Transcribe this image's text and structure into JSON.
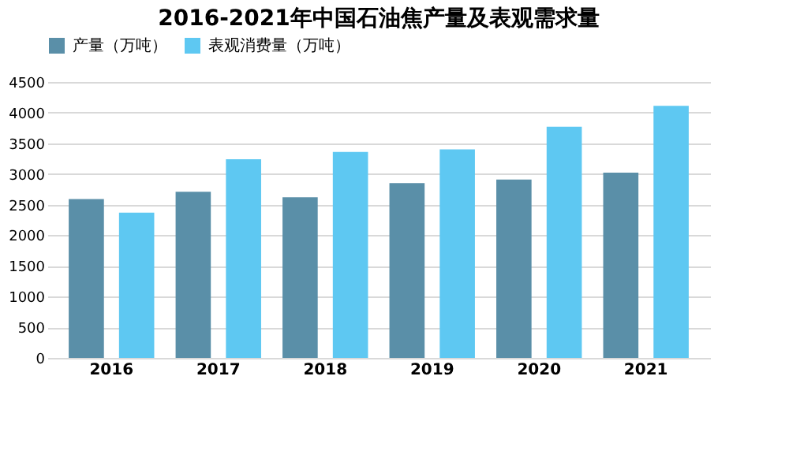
{
  "chart_data": {
    "type": "bar",
    "title": "2016-2021年中国石油焦产量及表观需求量",
    "categories": [
      "2016",
      "2017",
      "2018",
      "2019",
      "2020",
      "2021"
    ],
    "series": [
      {
        "name": "产量（万吨）",
        "color": "#5a8fa8",
        "values": [
          2590,
          2710,
          2620,
          2850,
          2910,
          3020
        ]
      },
      {
        "name": "表观消费量（万吨）",
        "color": "#5ec8f2",
        "values": [
          2370,
          3240,
          3360,
          3400,
          3770,
          4110
        ]
      }
    ],
    "ylim": [
      0,
      4500
    ],
    "yticks": [
      0,
      500,
      1000,
      1500,
      2000,
      2500,
      3000,
      3500,
      4000,
      4500
    ],
    "grid": "y",
    "legend": "top"
  }
}
